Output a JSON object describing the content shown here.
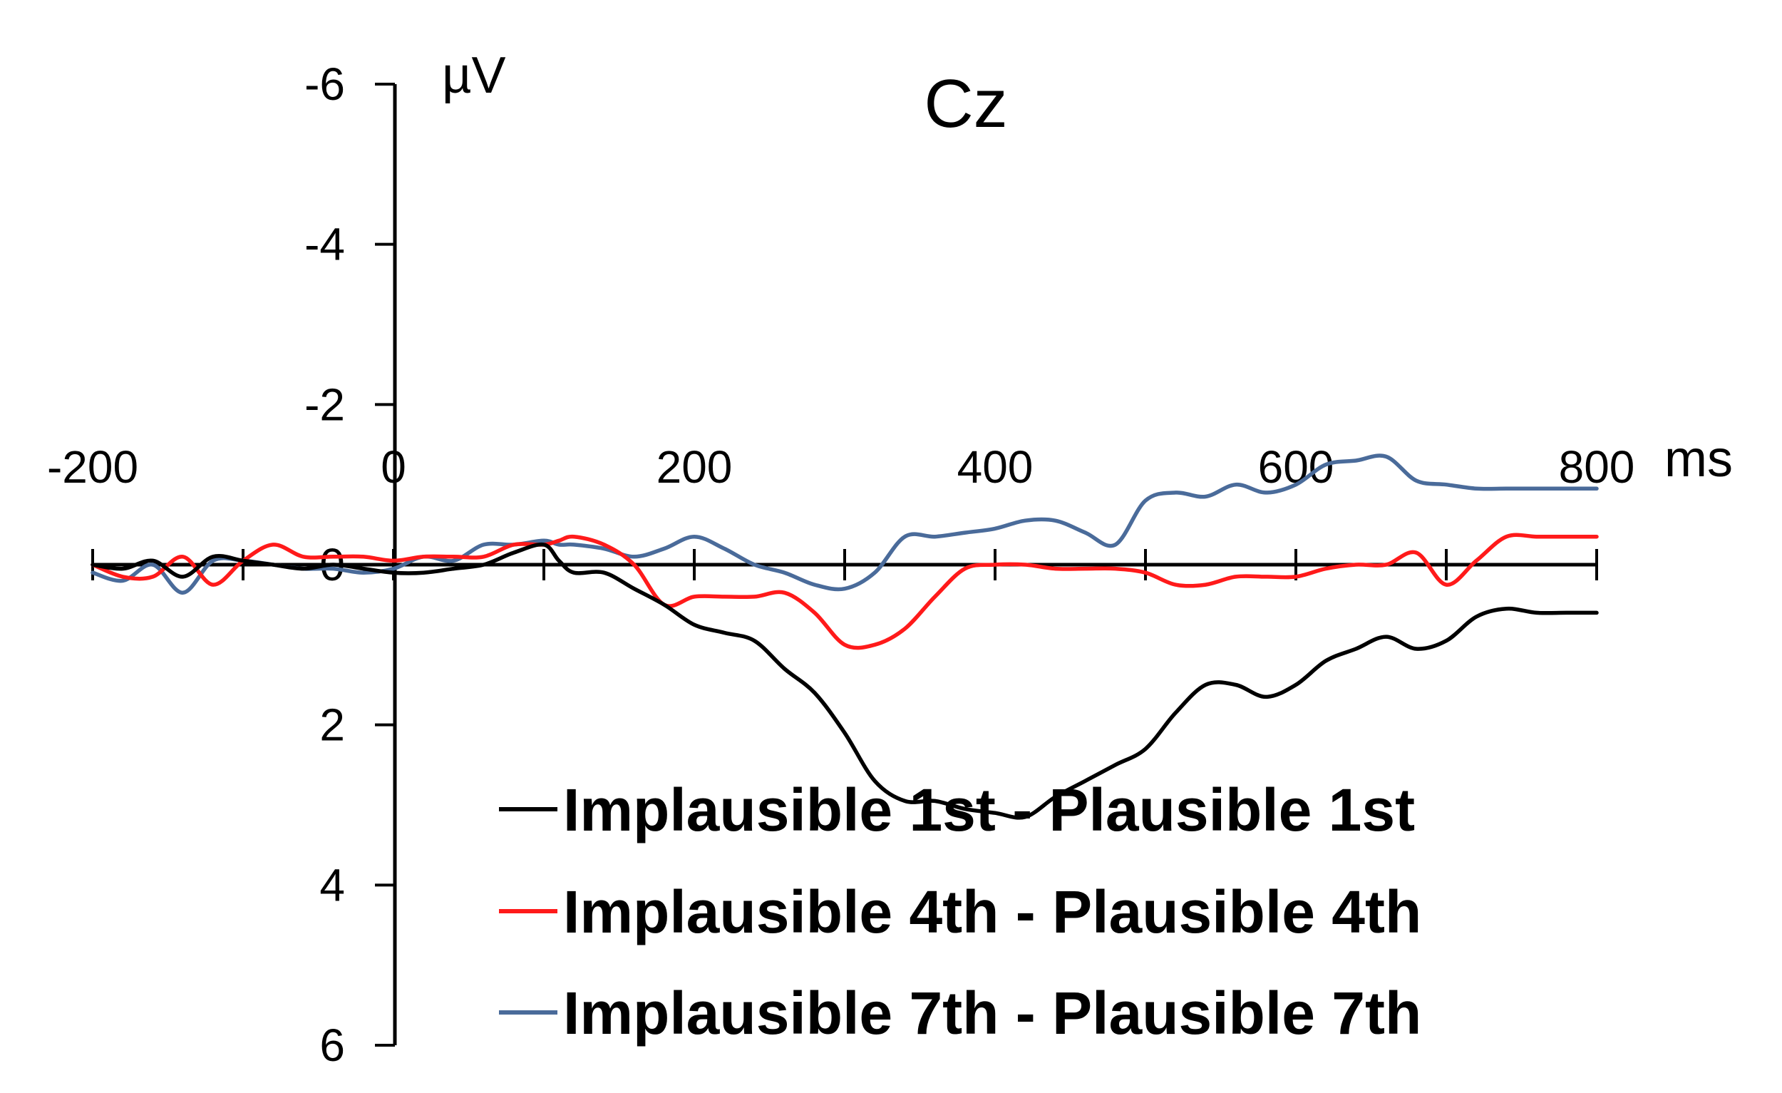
{
  "chart_data": {
    "type": "line",
    "title": "Cz",
    "ylabel": "µV",
    "xlabel": "ms",
    "xlim": [
      -200,
      800
    ],
    "ylim": [
      -6,
      6
    ],
    "y_inverted": true,
    "x_ticks": [
      "-200",
      "0",
      "200",
      "400",
      "600",
      "800"
    ],
    "y_ticks": [
      "-6",
      "-4",
      "-2",
      "0",
      "2",
      "4",
      "6"
    ],
    "legend_position": "bottom-right",
    "series": [
      {
        "name": "Implausible 1st - Plausible 1st",
        "color": "#000000",
        "x": [
          -200,
          -180,
          -160,
          -140,
          -120,
          -100,
          -80,
          -60,
          -40,
          -20,
          0,
          20,
          40,
          60,
          80,
          100,
          110,
          120,
          140,
          160,
          180,
          200,
          220,
          240,
          260,
          280,
          300,
          320,
          340,
          360,
          380,
          400,
          420,
          440,
          460,
          480,
          500,
          520,
          540,
          560,
          580,
          600,
          620,
          640,
          660,
          680,
          700,
          720,
          740,
          760,
          780,
          800
        ],
        "values": [
          0.0,
          0.05,
          -0.05,
          0.15,
          -0.1,
          -0.05,
          0.0,
          0.05,
          0.0,
          0.05,
          0.1,
          0.1,
          0.05,
          0.0,
          -0.15,
          -0.25,
          -0.05,
          0.1,
          0.1,
          0.3,
          0.5,
          0.75,
          0.85,
          0.95,
          1.3,
          1.6,
          2.1,
          2.7,
          2.95,
          2.95,
          3.05,
          3.1,
          3.15,
          2.9,
          2.7,
          2.5,
          2.3,
          1.85,
          1.5,
          1.5,
          1.65,
          1.5,
          1.2,
          1.05,
          0.9,
          1.05,
          0.95,
          0.65,
          0.55,
          0.6,
          0.6,
          0.6
        ]
      },
      {
        "name": "Implausible 4th - Plausible 4th",
        "color": "#ff1a1a",
        "x": [
          -200,
          -180,
          -160,
          -140,
          -120,
          -100,
          -80,
          -60,
          -40,
          -20,
          0,
          20,
          40,
          60,
          80,
          100,
          110,
          120,
          140,
          160,
          180,
          200,
          220,
          240,
          260,
          280,
          300,
          320,
          340,
          360,
          380,
          400,
          420,
          440,
          460,
          480,
          500,
          520,
          540,
          560,
          580,
          600,
          620,
          640,
          660,
          680,
          700,
          720,
          740,
          760,
          780,
          800
        ],
        "values": [
          0.0,
          0.15,
          0.15,
          -0.1,
          0.25,
          -0.05,
          -0.25,
          -0.1,
          -0.1,
          -0.1,
          -0.05,
          -0.1,
          -0.1,
          -0.1,
          -0.25,
          -0.25,
          -0.3,
          -0.35,
          -0.25,
          0.0,
          0.5,
          0.4,
          0.4,
          0.4,
          0.35,
          0.6,
          1.0,
          1.0,
          0.8,
          0.4,
          0.05,
          0.0,
          0.0,
          0.05,
          0.05,
          0.05,
          0.1,
          0.25,
          0.25,
          0.15,
          0.15,
          0.15,
          0.05,
          0.0,
          0.0,
          -0.15,
          0.25,
          -0.05,
          -0.35,
          -0.35,
          -0.35,
          -0.35
        ]
      },
      {
        "name": "Implausible 7th - Plausible 7th",
        "color": "#4a6b9a",
        "x": [
          -200,
          -180,
          -160,
          -140,
          -120,
          -100,
          -80,
          -60,
          -40,
          -20,
          0,
          20,
          40,
          60,
          80,
          100,
          110,
          120,
          140,
          160,
          180,
          200,
          220,
          240,
          260,
          280,
          300,
          320,
          340,
          360,
          380,
          400,
          420,
          440,
          460,
          480,
          500,
          520,
          540,
          560,
          580,
          600,
          620,
          640,
          660,
          680,
          700,
          720,
          740,
          760,
          780,
          800
        ],
        "values": [
          0.1,
          0.2,
          0.0,
          0.35,
          -0.05,
          -0.05,
          0.0,
          0.05,
          0.05,
          0.1,
          0.05,
          -0.1,
          -0.05,
          -0.25,
          -0.25,
          -0.3,
          -0.25,
          -0.25,
          -0.2,
          -0.1,
          -0.2,
          -0.35,
          -0.2,
          0.0,
          0.1,
          0.25,
          0.3,
          0.1,
          -0.35,
          -0.35,
          -0.4,
          -0.45,
          -0.55,
          -0.55,
          -0.4,
          -0.25,
          -0.8,
          -0.9,
          -0.85,
          -1.0,
          -0.9,
          -1.0,
          -1.25,
          -1.3,
          -1.35,
          -1.05,
          -1.0,
          -0.95,
          -0.95,
          -0.95,
          -0.95,
          -0.95
        ]
      }
    ]
  }
}
